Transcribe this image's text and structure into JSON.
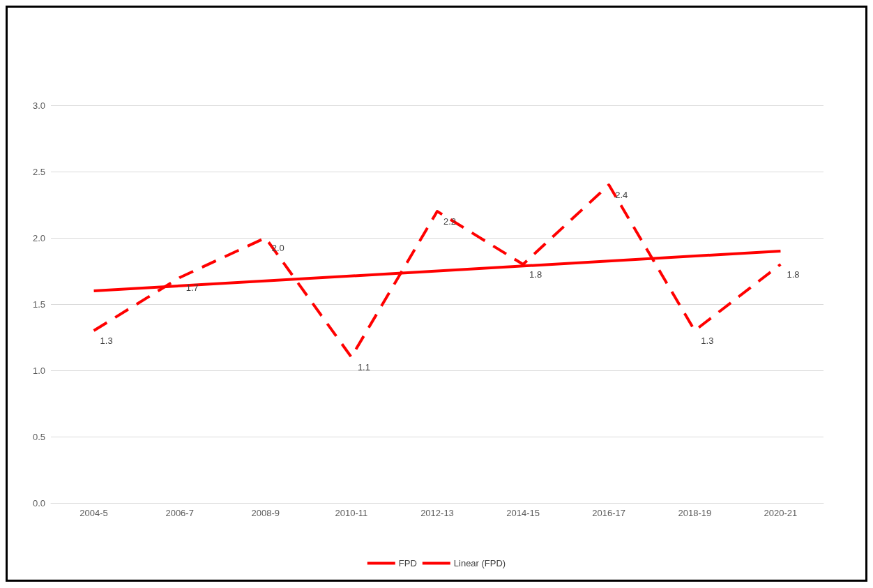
{
  "chart_data": {
    "type": "line",
    "categories": [
      "2004-5",
      "2006-7",
      "2008-9",
      "2010-11",
      "2012-13",
      "2014-15",
      "2016-17",
      "2018-19",
      "2020-21"
    ],
    "series": [
      {
        "name": "FPD",
        "color": "#ff0000",
        "line_style": "dashed",
        "values": [
          1.3,
          1.7,
          2.0,
          1.1,
          2.2,
          1.8,
          2.4,
          1.3,
          1.8
        ],
        "value_labels": [
          "1.3",
          "1.7",
          "2.0",
          "1.1",
          "2.2",
          "1.8",
          "2.4",
          "1.3",
          "1.8"
        ]
      },
      {
        "name": "Linear (FPD)",
        "color": "#ff0000",
        "line_style": "solid",
        "x": [
          "2004-5",
          "2020-21"
        ],
        "values": [
          1.6,
          1.9
        ]
      }
    ],
    "ylim": [
      0,
      3
    ],
    "yticks": [
      {
        "value": 0,
        "label": "0.0"
      },
      0.5,
      {
        "value": 1,
        "label": "1.0"
      },
      1.5,
      {
        "value": 2,
        "label": "2.0"
      },
      2.5,
      {
        "value": 3,
        "label": "3.0"
      }
    ],
    "grid": "y",
    "legend": "bottom",
    "marker": "none"
  }
}
